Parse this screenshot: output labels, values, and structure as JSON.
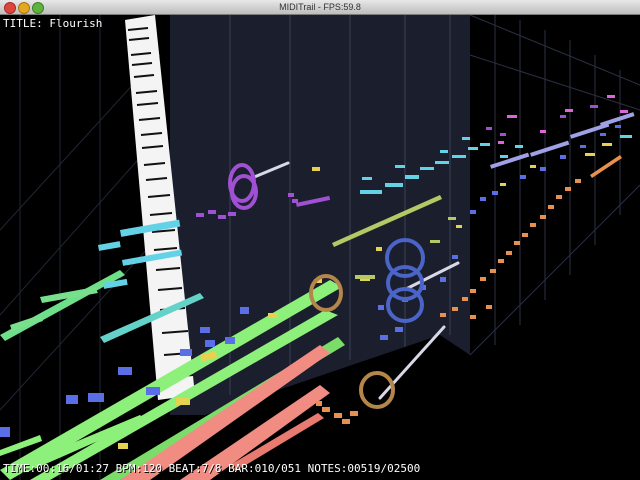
{
  "window": {
    "title": "MIDITrail - FPS:59.8"
  },
  "hud": {
    "title_line": "TITLE: Flourish",
    "status_line": "TIME:00:16/01:27 BPM:120 BEAT:7/8 BAR:010/051 NOTES:00519/02500"
  },
  "colors": {
    "background": "#000000",
    "green_track": "#8cf07a",
    "red_track": "#f08c82",
    "cyan_track": "#64d2e6",
    "blue_track": "#5a6ee6",
    "orange_track": "#e89050",
    "purple_track": "#a050d2",
    "yellow_track": "#e6d250",
    "olive_track": "#b4c864",
    "magenta_track": "#dc64dc",
    "plane": "#262a40"
  }
}
